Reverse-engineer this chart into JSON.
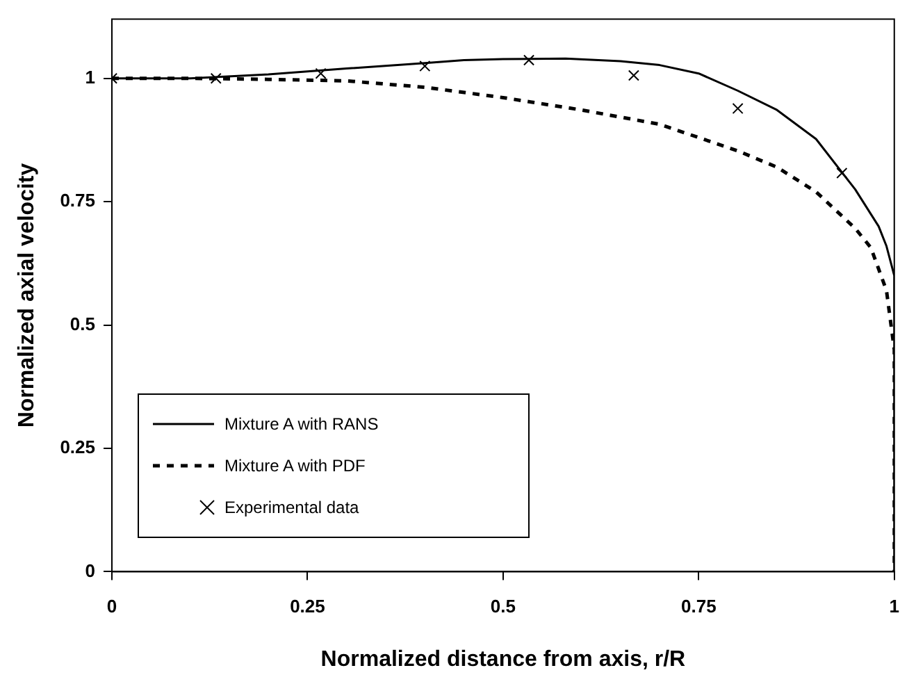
{
  "chart_data": {
    "type": "line",
    "xlabel": "Normalized distance from axis, r/R",
    "ylabel": "Normalized axial velocity",
    "xlim": [
      0,
      1
    ],
    "ylim": [
      0,
      1.12
    ],
    "xticks": [
      0,
      0.25,
      0.5,
      0.75,
      1
    ],
    "yticks": [
      0,
      0.25,
      0.5,
      0.75,
      1
    ],
    "grid": false,
    "legend": "bottom left",
    "series": [
      {
        "name": "Mixture A with RANS",
        "type": "line",
        "color": "#000000",
        "line_style": "solid",
        "marker": "none",
        "x": [
          0,
          0.1,
          0.2,
          0.3,
          0.4,
          0.45,
          0.5,
          0.58,
          0.65,
          0.7,
          0.75,
          0.8,
          0.85,
          0.9,
          0.95,
          0.98,
          0.99,
          1,
          1
        ],
        "values": [
          1,
          1,
          1.008,
          1.02,
          1.031,
          1.037,
          1.039,
          1.04,
          1.035,
          1.027,
          1.01,
          0.975,
          0.936,
          0.877,
          0.775,
          0.7,
          0.66,
          0.6,
          0
        ]
      },
      {
        "name": "Mixture A with PDF",
        "type": "line",
        "color": "#000000",
        "line_style": "dashed",
        "marker": "none",
        "x": [
          0,
          0.1,
          0.2,
          0.3,
          0.4,
          0.5,
          0.6,
          0.7,
          0.8,
          0.85,
          0.9,
          0.95,
          0.97,
          0.99,
          1,
          1
        ],
        "values": [
          1,
          1,
          0.998,
          0.995,
          0.982,
          0.961,
          0.936,
          0.907,
          0.853,
          0.82,
          0.77,
          0.696,
          0.657,
          0.57,
          0.45,
          0
        ]
      },
      {
        "name": "Experimental data",
        "type": "scatter",
        "color": "#000000",
        "marker": "cross",
        "x": [
          0,
          0.133,
          0.267,
          0.4,
          0.533,
          0.667,
          0.8,
          0.933
        ],
        "values": [
          1,
          1,
          1.01,
          1.025,
          1.037,
          1.006,
          0.939,
          0.808
        ]
      }
    ]
  }
}
